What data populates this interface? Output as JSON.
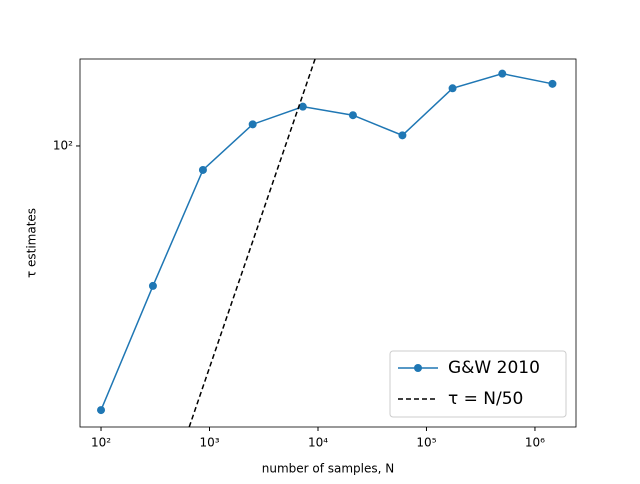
{
  "chart_data": {
    "type": "line",
    "xlabel": "number of samples, N",
    "ylabel": "τ estimates",
    "xscale": "log",
    "yscale": "log",
    "xlim": [
      64,
      2390000
    ],
    "ylim": [
      13,
      188
    ],
    "xticks": [
      {
        "value": 100,
        "label": "10²"
      },
      {
        "value": 1000,
        "label": "10³"
      },
      {
        "value": 10000,
        "label": "10⁴"
      },
      {
        "value": 100000,
        "label": "10⁵"
      },
      {
        "value": 1000000,
        "label": "10⁶"
      }
    ],
    "yticks": [
      {
        "value": 100,
        "label": "10²"
      }
    ],
    "legend": "lower right",
    "series": [
      {
        "name": "G&W 2010",
        "color": "#1f77b4",
        "style": "solid",
        "marker": true,
        "x": [
          100,
          301,
          870,
          2500,
          7250,
          21000,
          60000,
          174000,
          500000,
          1450000
        ],
        "values": [
          14.7,
          36.2,
          84,
          117,
          133,
          125,
          108,
          152,
          169,
          157
        ]
      },
      {
        "name": "τ = N/50",
        "color": "#000000",
        "style": "dashed",
        "marker": false,
        "x": [
          650,
          9400
        ],
        "values": [
          13,
          188
        ]
      }
    ]
  }
}
